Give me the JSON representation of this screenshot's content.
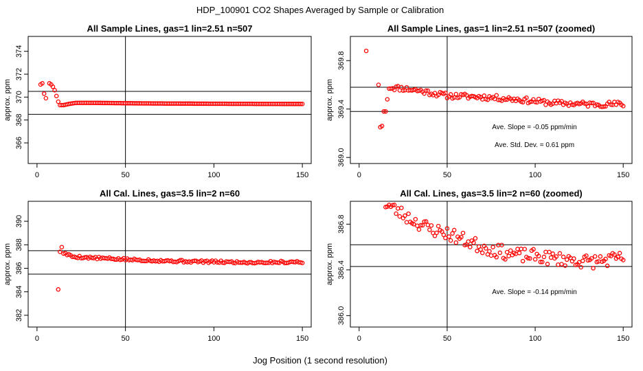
{
  "main_title": "HDP_100901  CO2 Shapes Averaged by Sample or Calibration",
  "x_label": "Jog Position (1 second resolution)",
  "chart_data": [
    {
      "type": "scatter",
      "title": "All Sample Lines, gas=1 lin=2.51 n=507",
      "ylabel": "approx. ppm",
      "xlim": [
        -5,
        155
      ],
      "ylim": [
        364.2,
        375.3
      ],
      "xticks": [
        0,
        50,
        100,
        150
      ],
      "yticks": [
        366,
        368,
        370,
        372,
        374
      ],
      "vline": 50,
      "hlines": [
        368.5,
        370.5
      ],
      "annotations": [],
      "series": [
        {
          "kind": "points",
          "x": [
            2,
            3,
            4,
            5,
            7,
            8,
            9,
            10,
            11,
            12
          ],
          "y": [
            371.1,
            371.2,
            370.3,
            369.9,
            371.2,
            371.1,
            370.9,
            370.6,
            370.1,
            369.6
          ]
        },
        {
          "kind": "flat",
          "x_start": 13,
          "x_end": 150,
          "step": 1,
          "values": [
            [
              13,
              369.3
            ],
            [
              15,
              369.3
            ],
            [
              18,
              369.4
            ],
            [
              22,
              369.5
            ],
            [
              30,
              369.5
            ],
            [
              60,
              369.45
            ],
            [
              100,
              369.42
            ],
            [
              150,
              369.4
            ]
          ]
        }
      ]
    },
    {
      "type": "scatter",
      "title": "All Sample Lines, gas=1 lin=2.51 n=507 (zoomed)",
      "ylabel": "approx. ppm",
      "xlim": [
        -5,
        155
      ],
      "ylim": [
        368.95,
        370.0
      ],
      "xticks": [
        0,
        50,
        100,
        150
      ],
      "yticks": [
        369.0,
        369.4,
        369.8
      ],
      "vline": 50,
      "hlines": [
        369.38,
        369.58
      ],
      "annotations": [
        "Ave. Slope =  -0.05  ppm/min",
        "Ave. Std. Dev. =  0.61  ppm"
      ],
      "series": [
        {
          "kind": "points",
          "x": [
            4,
            11,
            12,
            13,
            14,
            15,
            16
          ],
          "y": [
            369.88,
            369.6,
            369.25,
            369.26,
            369.38,
            369.38,
            369.48
          ]
        },
        {
          "kind": "noisy",
          "x_start": 17,
          "x_end": 150,
          "step": 1,
          "amp": 0.022,
          "seed": 11,
          "values": [
            [
              17,
              369.58
            ],
            [
              25,
              369.57
            ],
            [
              35,
              369.55
            ],
            [
              50,
              369.51
            ],
            [
              70,
              369.5
            ],
            [
              90,
              369.48
            ],
            [
              110,
              369.45
            ],
            [
              130,
              369.44
            ],
            [
              150,
              369.44
            ]
          ]
        }
      ]
    },
    {
      "type": "scatter",
      "title": "All Cal. Lines, gas=3.5 lin=2 n=60",
      "ylabel": "approx. ppm",
      "xlim": [
        -5,
        155
      ],
      "ylim": [
        381.0,
        391.7
      ],
      "xticks": [
        0,
        50,
        100,
        150
      ],
      "yticks": [
        382,
        384,
        386,
        388,
        390
      ],
      "vline": 50,
      "hlines": [
        385.5,
        387.5
      ],
      "annotations": [],
      "series": [
        {
          "kind": "points",
          "x": [
            12,
            13,
            14
          ],
          "y": [
            384.2,
            387.4,
            387.8
          ]
        },
        {
          "kind": "noisy",
          "x_start": 15,
          "x_end": 150,
          "step": 1,
          "amp": 0.1,
          "seed": 5,
          "values": [
            [
              15,
              387.3
            ],
            [
              20,
              387.0
            ],
            [
              30,
              386.9
            ],
            [
              50,
              386.75
            ],
            [
              80,
              386.6
            ],
            [
              120,
              386.5
            ],
            [
              150,
              386.55
            ]
          ]
        }
      ]
    },
    {
      "type": "scatter",
      "title": "All Cal. Lines, gas=3.5 lin=2 n=60 (zoomed)",
      "ylabel": "approx. ppm",
      "xlim": [
        -5,
        155
      ],
      "ylim": [
        385.9,
        387.0
      ],
      "xticks": [
        0,
        50,
        100,
        150
      ],
      "yticks": [
        386.0,
        386.4,
        386.8
      ],
      "vline": 50,
      "hlines": [
        386.43,
        386.62
      ],
      "annotations": [
        "Ave. Slope =  -0.14  ppm/min"
      ],
      "series": [
        {
          "kind": "noisy",
          "x_start": 15,
          "x_end": 150,
          "step": 1,
          "amp": 0.06,
          "seed": 23,
          "values": [
            [
              15,
              386.98
            ],
            [
              20,
              386.93
            ],
            [
              30,
              386.84
            ],
            [
              40,
              386.76
            ],
            [
              50,
              386.72
            ],
            [
              60,
              386.66
            ],
            [
              70,
              386.6
            ],
            [
              80,
              386.56
            ],
            [
              90,
              386.53
            ],
            [
              100,
              386.52
            ],
            [
              110,
              386.5
            ],
            [
              120,
              386.49
            ],
            [
              130,
              386.47
            ],
            [
              150,
              386.5
            ]
          ]
        }
      ]
    }
  ]
}
